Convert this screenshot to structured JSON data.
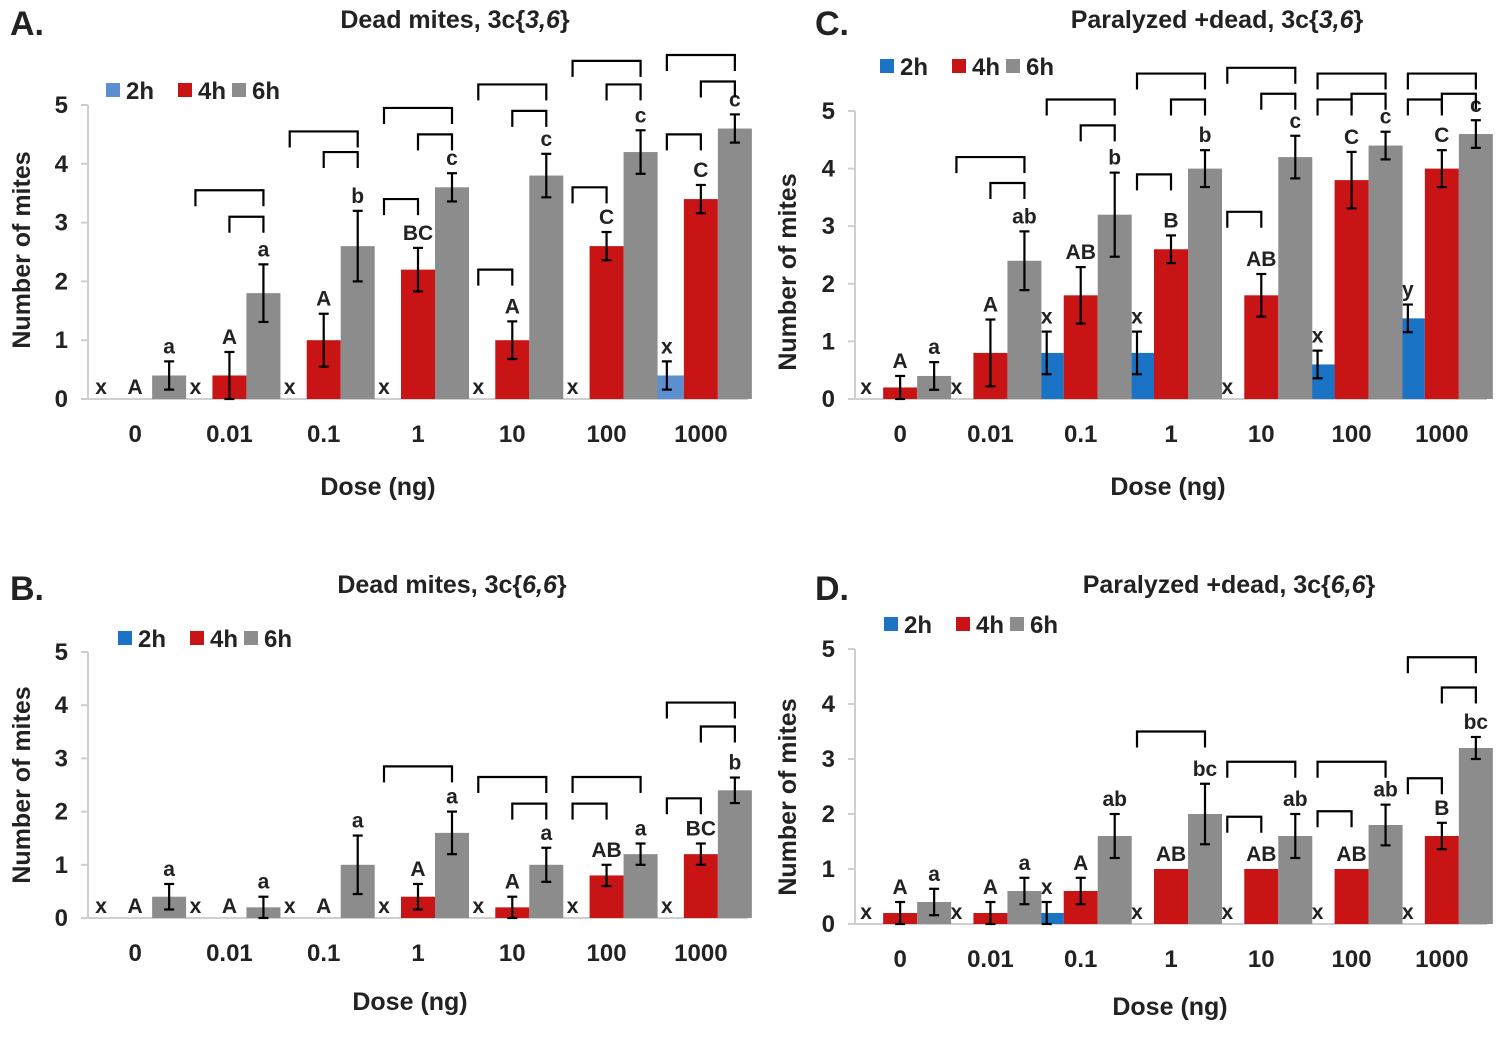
{
  "colors": {
    "2h": "#1a73c4",
    "2h_alt": "#5b8fd0",
    "4h": "#c81414",
    "6h": "#8c8c8c"
  },
  "chart_data": [
    {
      "type": "bar",
      "panel": "A.",
      "title_prefix": "Dead mites, 3c{",
      "title_italic": "3,6",
      "title_suffix": "}",
      "xlabel": "Dose (ng)",
      "ylabel": "Number of mites",
      "ylim": [
        0,
        5
      ],
      "yticks": [
        "0",
        "1",
        "2",
        "3",
        "4",
        "5"
      ],
      "categories": [
        "0",
        "0.01",
        "0.1",
        "1",
        "10",
        "100",
        "1000"
      ],
      "legend": [
        "2h",
        "4h",
        "6h"
      ],
      "series": [
        {
          "name": "2h",
          "values": [
            0,
            0,
            0,
            0,
            0,
            0,
            0.4
          ],
          "errors": [
            0,
            0,
            0,
            0,
            0,
            0,
            0.24
          ],
          "labels": [
            "x",
            "x",
            "x",
            "x",
            "x",
            "x",
            "x"
          ]
        },
        {
          "name": "4h",
          "values": [
            0,
            0.4,
            1.0,
            2.2,
            1.0,
            2.6,
            3.4
          ],
          "errors": [
            0,
            0.4,
            0.45,
            0.37,
            0.32,
            0.24,
            0.24
          ],
          "labels": [
            "A",
            "A",
            "A",
            "BC",
            "A",
            "C",
            "C"
          ]
        },
        {
          "name": "6h",
          "values": [
            0.4,
            1.8,
            2.6,
            3.6,
            3.8,
            4.2,
            4.6
          ],
          "errors": [
            0.24,
            0.49,
            0.6,
            0.24,
            0.37,
            0.37,
            0.24
          ],
          "labels": [
            "a",
            "a",
            "b",
            "c",
            "c",
            "c",
            "c"
          ]
        }
      ],
      "brackets": [
        {
          "cat": 1,
          "from": 1,
          "to": 2,
          "y": 3.1
        },
        {
          "cat": 1,
          "from": 0,
          "to": 2,
          "y": 3.55
        },
        {
          "cat": 2,
          "from": 1,
          "to": 2,
          "y": 4.2
        },
        {
          "cat": 2,
          "from": 0,
          "to": 2,
          "y": 4.55
        },
        {
          "cat": 3,
          "from": 0,
          "to": 1,
          "y": 3.4
        },
        {
          "cat": 3,
          "from": 1,
          "to": 2,
          "y": 4.5
        },
        {
          "cat": 3,
          "from": 0,
          "to": 2,
          "y": 4.95
        },
        {
          "cat": 4,
          "from": 0,
          "to": 1,
          "y": 2.2
        },
        {
          "cat": 4,
          "from": 1,
          "to": 2,
          "y": 4.9
        },
        {
          "cat": 4,
          "from": 0,
          "to": 2,
          "y": 5.35
        },
        {
          "cat": 5,
          "from": 0,
          "to": 1,
          "y": 3.6
        },
        {
          "cat": 5,
          "from": 1,
          "to": 2,
          "y": 5.35
        },
        {
          "cat": 5,
          "from": 0,
          "to": 2,
          "y": 5.75
        },
        {
          "cat": 6,
          "from": 0,
          "to": 1,
          "y": 4.5
        },
        {
          "cat": 6,
          "from": 1,
          "to": 2,
          "y": 5.4
        },
        {
          "cat": 6,
          "from": 0,
          "to": 2,
          "y": 5.85
        }
      ]
    },
    {
      "type": "bar",
      "panel": "B.",
      "title_prefix": "Dead mites, 3c{",
      "title_italic": "6,6",
      "title_suffix": "}",
      "xlabel": "Dose (ng)",
      "ylabel": "Number of mites",
      "ylim": [
        0,
        5
      ],
      "yticks": [
        "0",
        "1",
        "2",
        "3",
        "4",
        "5"
      ],
      "categories": [
        "0",
        "0.01",
        "0.1",
        "1",
        "10",
        "100",
        "1000"
      ],
      "legend": [
        "2h",
        "4h",
        "6h"
      ],
      "series": [
        {
          "name": "2h",
          "values": [
            0,
            0,
            0,
            0,
            0,
            0,
            0
          ],
          "errors": [
            0,
            0,
            0,
            0,
            0,
            0,
            0
          ],
          "labels": [
            "x",
            "x",
            "x",
            "x",
            "x",
            "x",
            "x"
          ]
        },
        {
          "name": "4h",
          "values": [
            0,
            0,
            0,
            0.4,
            0.2,
            0.8,
            1.2
          ],
          "errors": [
            0,
            0,
            0,
            0.24,
            0.2,
            0.2,
            0.2
          ],
          "labels": [
            "A",
            "A",
            "A",
            "A",
            "A",
            "AB",
            "BC"
          ]
        },
        {
          "name": "6h",
          "values": [
            0.4,
            0.2,
            1.0,
            1.6,
            1.0,
            1.2,
            2.4
          ],
          "errors": [
            0.24,
            0.2,
            0.55,
            0.4,
            0.32,
            0.2,
            0.24
          ],
          "labels": [
            "a",
            "a",
            "a",
            "a",
            "a",
            "a",
            "b"
          ]
        }
      ],
      "brackets": [
        {
          "cat": 3,
          "from": 0,
          "to": 2,
          "y": 2.85
        },
        {
          "cat": 4,
          "from": 1,
          "to": 2,
          "y": 2.15
        },
        {
          "cat": 4,
          "from": 0,
          "to": 2,
          "y": 2.65
        },
        {
          "cat": 5,
          "from": 0,
          "to": 1,
          "y": 2.15
        },
        {
          "cat": 5,
          "from": 0,
          "to": 2,
          "y": 2.65
        },
        {
          "cat": 6,
          "from": 0,
          "to": 1,
          "y": 2.25
        },
        {
          "cat": 6,
          "from": 1,
          "to": 2,
          "y": 3.6
        },
        {
          "cat": 6,
          "from": 0,
          "to": 2,
          "y": 4.05
        }
      ]
    },
    {
      "type": "bar",
      "panel": "C.",
      "title_prefix": "Paralyzed +dead, 3c{",
      "title_italic": "3,6",
      "title_suffix": "}",
      "xlabel": "Dose (ng)",
      "ylabel": "Number of mites",
      "ylim": [
        0,
        5
      ],
      "yticks": [
        "0",
        "1",
        "2",
        "3",
        "4",
        "5"
      ],
      "categories": [
        "0",
        "0.01",
        "0.1",
        "1",
        "10",
        "100",
        "1000"
      ],
      "legend": [
        "2h",
        "4h",
        "6h"
      ],
      "series": [
        {
          "name": "2h",
          "values": [
            0,
            0,
            0.8,
            0.8,
            0,
            0.6,
            1.4
          ],
          "errors": [
            0,
            0,
            0.37,
            0.37,
            0,
            0.24,
            0.24
          ],
          "labels": [
            "x",
            "x",
            "x",
            "x",
            "x",
            "x",
            "y"
          ]
        },
        {
          "name": "4h",
          "values": [
            0.2,
            0.8,
            1.8,
            2.6,
            1.8,
            3.8,
            4.0
          ],
          "errors": [
            0.2,
            0.58,
            0.49,
            0.24,
            0.37,
            0.49,
            0.32
          ],
          "labels": [
            "A",
            "A",
            "AB",
            "B",
            "AB",
            "C",
            "C"
          ]
        },
        {
          "name": "6h",
          "values": [
            0.4,
            2.4,
            3.2,
            4.0,
            4.2,
            4.4,
            4.6
          ],
          "errors": [
            0.24,
            0.51,
            0.73,
            0.32,
            0.37,
            0.24,
            0.24
          ],
          "labels": [
            "a",
            "ab",
            "b",
            "b",
            "c",
            "c",
            "c"
          ]
        }
      ],
      "brackets": [
        {
          "cat": 1,
          "from": 1,
          "to": 2,
          "y": 3.75
        },
        {
          "cat": 1,
          "from": 0,
          "to": 2,
          "y": 4.2
        },
        {
          "cat": 2,
          "from": 1,
          "to": 2,
          "y": 4.75
        },
        {
          "cat": 2,
          "from": 0,
          "to": 2,
          "y": 5.2
        },
        {
          "cat": 3,
          "from": 0,
          "to": 1,
          "y": 3.9
        },
        {
          "cat": 3,
          "from": 1,
          "to": 2,
          "y": 5.2
        },
        {
          "cat": 3,
          "from": 0,
          "to": 2,
          "y": 5.65
        },
        {
          "cat": 4,
          "from": 0,
          "to": 1,
          "y": 3.25
        },
        {
          "cat": 4,
          "from": 1,
          "to": 2,
          "y": 5.3
        },
        {
          "cat": 4,
          "from": 0,
          "to": 2,
          "y": 5.75
        },
        {
          "cat": 5,
          "from": 0,
          "to": 1,
          "y": 5.2
        },
        {
          "cat": 5,
          "from": 1,
          "to": 2,
          "y": 5.3
        },
        {
          "cat": 5,
          "from": 0,
          "to": 2,
          "y": 5.65
        },
        {
          "cat": 6,
          "from": 0,
          "to": 1,
          "y": 5.2
        },
        {
          "cat": 6,
          "from": 1,
          "to": 2,
          "y": 5.3
        },
        {
          "cat": 6,
          "from": 0,
          "to": 2,
          "y": 5.65
        }
      ]
    },
    {
      "type": "bar",
      "panel": "D.",
      "title_prefix": "Paralyzed +dead, 3c{",
      "title_italic": "6,6",
      "title_suffix": "}",
      "xlabel": "Dose (ng)",
      "ylabel": "Number of mites",
      "ylim": [
        0,
        5
      ],
      "yticks": [
        "0",
        "1",
        "2",
        "3",
        "4",
        "5"
      ],
      "categories": [
        "0",
        "0.01",
        "0.1",
        "1",
        "10",
        "100",
        "1000"
      ],
      "legend": [
        "2h",
        "4h",
        "6h"
      ],
      "series": [
        {
          "name": "2h",
          "values": [
            0,
            0,
            0.2,
            0,
            0,
            0,
            0
          ],
          "errors": [
            0,
            0,
            0.2,
            0,
            0,
            0,
            0
          ],
          "labels": [
            "x",
            "x",
            "x",
            "x",
            "x",
            "x",
            "x"
          ]
        },
        {
          "name": "4h",
          "values": [
            0.2,
            0.2,
            0.6,
            1.0,
            1.0,
            1.0,
            1.6
          ],
          "errors": [
            0.2,
            0.2,
            0.24,
            0,
            0,
            0,
            0.24
          ],
          "labels": [
            "A",
            "A",
            "A",
            "AB",
            "AB",
            "AB",
            "B"
          ]
        },
        {
          "name": "6h",
          "values": [
            0.4,
            0.6,
            1.6,
            2.0,
            1.6,
            1.8,
            3.2
          ],
          "errors": [
            0.24,
            0.24,
            0.4,
            0.55,
            0.4,
            0.37,
            0.2
          ],
          "labels": [
            "a",
            "a",
            "ab",
            "bc",
            "ab",
            "ab",
            "bc"
          ]
        }
      ],
      "brackets": [
        {
          "cat": 3,
          "from": 0,
          "to": 2,
          "y": 3.5
        },
        {
          "cat": 4,
          "from": 0,
          "to": 1,
          "y": 1.95
        },
        {
          "cat": 4,
          "from": 0,
          "to": 2,
          "y": 2.95
        },
        {
          "cat": 5,
          "from": 0,
          "to": 1,
          "y": 2.05
        },
        {
          "cat": 5,
          "from": 0,
          "to": 2,
          "y": 2.95
        },
        {
          "cat": 6,
          "from": 0,
          "to": 1,
          "y": 2.65
        },
        {
          "cat": 6,
          "from": 1,
          "to": 2,
          "y": 4.3
        },
        {
          "cat": 6,
          "from": 0,
          "to": 2,
          "y": 4.85
        }
      ]
    }
  ]
}
